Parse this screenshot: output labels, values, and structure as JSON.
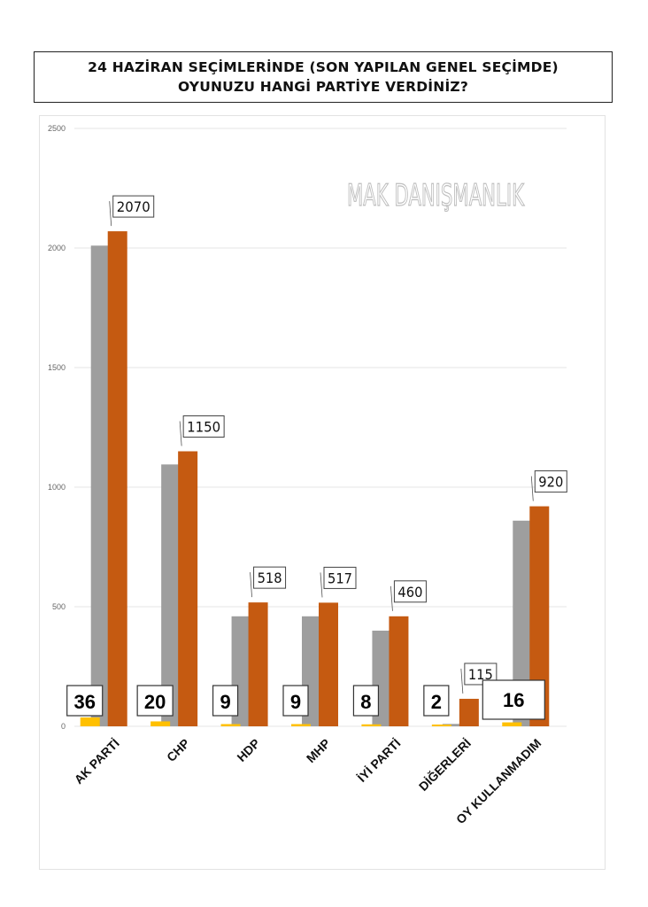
{
  "title": {
    "line1": "24 HAZİRAN SEÇİMLERİNDE (SON YAPILAN GENEL SEÇİMDE)",
    "line2": "OYUNUZU HANGİ PARTİYE VERDİNİZ?"
  },
  "watermark": "MAK DANIŞMANLIK",
  "colors": {
    "orange": "#c55a11",
    "gray": "#9e9e9e",
    "yellow": "#ffc000",
    "grid": "#e4e4e4",
    "axis_text": "#666666"
  },
  "chart_data": {
    "type": "bar",
    "title": "24 HAZİRAN SEÇİMLERİNDE (SON YAPILAN GENEL SEÇİMDE) OYUNUZU HANGİ PARTİYE VERDİNİZ?",
    "categories": [
      "AK PARTİ",
      "CHP",
      "HDP",
      "MHP",
      "İYİ PARTİ",
      "DİĞERLERİ",
      "OY KULLANMADIM"
    ],
    "ylim": [
      0,
      2500
    ],
    "yticks": [
      0,
      500,
      1000,
      1500,
      2000,
      2500
    ],
    "grid": true,
    "legend": "none",
    "series": [
      {
        "values": [
          2010,
          1095,
          460,
          460,
          400,
          10,
          860
        ]
      },
      {
        "values": [
          2070,
          1150,
          518,
          517,
          460,
          115,
          920
        ]
      },
      {
        "values": [
          36,
          20,
          9,
          9,
          8,
          2,
          16
        ]
      }
    ],
    "labels_orange": [
      "2070",
      "1150",
      "518",
      "517",
      "460",
      "115",
      "920"
    ],
    "labels_yellow": [
      "36",
      "20",
      "9",
      "9",
      "8",
      "2",
      "16"
    ]
  }
}
